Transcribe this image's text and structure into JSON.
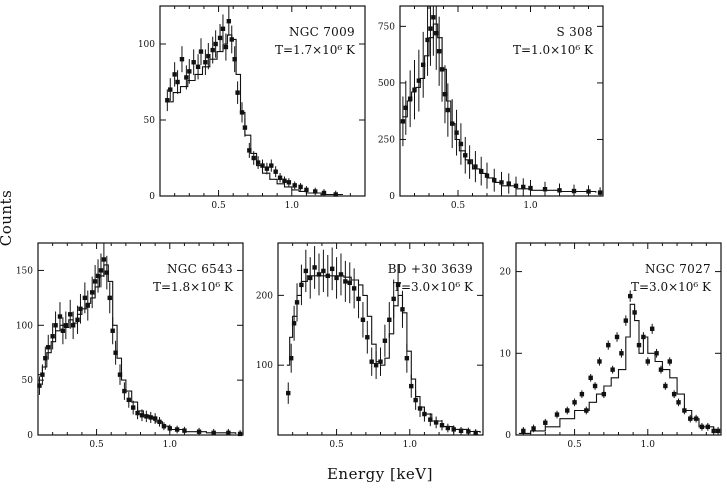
{
  "figure": {
    "xlabel": "Energy [keV]",
    "ylabel": "Counts"
  },
  "chart_data": [
    {
      "type": "histogram",
      "name": "NGC 7009",
      "temperature": "T=1.7×10⁶ K",
      "xlim": [
        0.1,
        1.5
      ],
      "ylim": [
        0,
        125
      ],
      "xticks": [
        {
          "v": 0.5,
          "label": "0.5"
        },
        {
          "v": 1.0,
          "label": "1.0"
        }
      ],
      "yticks": [
        {
          "v": 0,
          "label": "0"
        },
        {
          "v": 50,
          "label": "50"
        },
        {
          "v": 100,
          "label": "100"
        }
      ],
      "model": [
        [
          0.14,
          62
        ],
        [
          0.19,
          68
        ],
        [
          0.24,
          72
        ],
        [
          0.29,
          76
        ],
        [
          0.34,
          80
        ],
        [
          0.39,
          85
        ],
        [
          0.44,
          90
        ],
        [
          0.49,
          95
        ],
        [
          0.53,
          100
        ],
        [
          0.56,
          106
        ],
        [
          0.59,
          103
        ],
        [
          0.62,
          80
        ],
        [
          0.65,
          55
        ],
        [
          0.68,
          40
        ],
        [
          0.72,
          28
        ],
        [
          0.76,
          20
        ],
        [
          0.8,
          15
        ],
        [
          0.85,
          11
        ],
        [
          0.9,
          8
        ],
        [
          0.95,
          6
        ],
        [
          1.0,
          4
        ],
        [
          1.05,
          3
        ],
        [
          1.1,
          2
        ],
        [
          1.2,
          1
        ],
        [
          1.35,
          1
        ]
      ],
      "points": [
        [
          0.15,
          63
        ],
        [
          0.17,
          70
        ],
        [
          0.2,
          80
        ],
        [
          0.22,
          75
        ],
        [
          0.25,
          90
        ],
        [
          0.28,
          78
        ],
        [
          0.3,
          82
        ],
        [
          0.33,
          88
        ],
        [
          0.36,
          85
        ],
        [
          0.38,
          95
        ],
        [
          0.41,
          88
        ],
        [
          0.43,
          92
        ],
        [
          0.46,
          96
        ],
        [
          0.48,
          100
        ],
        [
          0.51,
          104
        ],
        [
          0.53,
          110
        ],
        [
          0.55,
          98
        ],
        [
          0.57,
          115
        ],
        [
          0.59,
          103
        ],
        [
          0.61,
          90
        ],
        [
          0.63,
          68
        ],
        [
          0.66,
          55
        ],
        [
          0.68,
          45
        ],
        [
          0.71,
          30
        ],
        [
          0.74,
          25
        ],
        [
          0.77,
          22
        ],
        [
          0.8,
          20
        ],
        [
          0.83,
          18
        ],
        [
          0.86,
          20
        ],
        [
          0.89,
          16
        ],
        [
          0.92,
          12
        ],
        [
          0.95,
          10
        ],
        [
          0.98,
          9
        ],
        [
          1.02,
          7
        ],
        [
          1.06,
          6
        ],
        [
          1.1,
          4
        ],
        [
          1.16,
          3
        ],
        [
          1.22,
          2
        ],
        [
          1.3,
          1
        ]
      ]
    },
    {
      "type": "histogram",
      "name": "S 308",
      "temperature": "T=1.0×10⁶ K",
      "xlim": [
        0.1,
        1.5
      ],
      "ylim": [
        0,
        840
      ],
      "xticks": [
        {
          "v": 0.5,
          "label": "0.5"
        },
        {
          "v": 1.0,
          "label": "1.0"
        }
      ],
      "yticks": [
        {
          "v": 0,
          "label": "0"
        },
        {
          "v": 250,
          "label": "250"
        },
        {
          "v": 500,
          "label": "500"
        },
        {
          "v": 750,
          "label": "750"
        }
      ],
      "model": [
        [
          0.12,
          350
        ],
        [
          0.15,
          420
        ],
        [
          0.18,
          460
        ],
        [
          0.21,
          480
        ],
        [
          0.24,
          520
        ],
        [
          0.27,
          620
        ],
        [
          0.3,
          700
        ],
        [
          0.33,
          760
        ],
        [
          0.36,
          700
        ],
        [
          0.39,
          560
        ],
        [
          0.42,
          420
        ],
        [
          0.45,
          320
        ],
        [
          0.48,
          250
        ],
        [
          0.51,
          200
        ],
        [
          0.55,
          160
        ],
        [
          0.6,
          120
        ],
        [
          0.65,
          100
        ],
        [
          0.7,
          80
        ],
        [
          0.75,
          60
        ],
        [
          0.8,
          45
        ],
        [
          0.9,
          32
        ],
        [
          1.0,
          25
        ],
        [
          1.2,
          20
        ],
        [
          1.45,
          15
        ]
      ],
      "points": [
        [
          0.12,
          330
        ],
        [
          0.14,
          390
        ],
        [
          0.17,
          430
        ],
        [
          0.2,
          470
        ],
        [
          0.23,
          510
        ],
        [
          0.26,
          580
        ],
        [
          0.29,
          690
        ],
        [
          0.31,
          740
        ],
        [
          0.33,
          790
        ],
        [
          0.35,
          720
        ],
        [
          0.37,
          640
        ],
        [
          0.39,
          560
        ],
        [
          0.41,
          450
        ],
        [
          0.43,
          380
        ],
        [
          0.46,
          320
        ],
        [
          0.49,
          280
        ],
        [
          0.52,
          230
        ],
        [
          0.55,
          180
        ],
        [
          0.58,
          150
        ],
        [
          0.62,
          130
        ],
        [
          0.66,
          110
        ],
        [
          0.7,
          90
        ],
        [
          0.75,
          70
        ],
        [
          0.8,
          60
        ],
        [
          0.85,
          55
        ],
        [
          0.9,
          45
        ],
        [
          0.95,
          40
        ],
        [
          1.0,
          35
        ],
        [
          1.1,
          30
        ],
        [
          1.2,
          25
        ],
        [
          1.3,
          22
        ],
        [
          1.4,
          20
        ],
        [
          1.48,
          15
        ]
      ]
    },
    {
      "type": "histogram",
      "name": "NGC 6543",
      "temperature": "T=1.8×10⁶ K",
      "xlim": [
        0.1,
        1.5
      ],
      "ylim": [
        0,
        175
      ],
      "xticks": [
        {
          "v": 0.5,
          "label": "0.5"
        },
        {
          "v": 1.0,
          "label": "1.0"
        }
      ],
      "yticks": [
        {
          "v": 0,
          "label": "0"
        },
        {
          "v": 50,
          "label": "50"
        },
        {
          "v": 100,
          "label": "100"
        },
        {
          "v": 150,
          "label": "150"
        }
      ],
      "model": [
        [
          0.1,
          55
        ],
        [
          0.13,
          62
        ],
        [
          0.16,
          75
        ],
        [
          0.19,
          85
        ],
        [
          0.22,
          95
        ],
        [
          0.25,
          100
        ],
        [
          0.28,
          98
        ],
        [
          0.31,
          105
        ],
        [
          0.34,
          102
        ],
        [
          0.37,
          110
        ],
        [
          0.4,
          115
        ],
        [
          0.43,
          120
        ],
        [
          0.46,
          125
        ],
        [
          0.49,
          135
        ],
        [
          0.52,
          145
        ],
        [
          0.55,
          155
        ],
        [
          0.58,
          140
        ],
        [
          0.61,
          100
        ],
        [
          0.64,
          70
        ],
        [
          0.67,
          50
        ],
        [
          0.7,
          40
        ],
        [
          0.74,
          30
        ],
        [
          0.78,
          22
        ],
        [
          0.82,
          18
        ],
        [
          0.86,
          15
        ],
        [
          0.9,
          12
        ],
        [
          0.95,
          8
        ],
        [
          1.0,
          5
        ],
        [
          1.1,
          3
        ],
        [
          1.25,
          2
        ],
        [
          1.45,
          1
        ]
      ],
      "points": [
        [
          0.11,
          45
        ],
        [
          0.13,
          55
        ],
        [
          0.15,
          70
        ],
        [
          0.17,
          80
        ],
        [
          0.2,
          90
        ],
        [
          0.22,
          100
        ],
        [
          0.25,
          108
        ],
        [
          0.27,
          95
        ],
        [
          0.29,
          100
        ],
        [
          0.32,
          110
        ],
        [
          0.34,
          100
        ],
        [
          0.37,
          105
        ],
        [
          0.39,
          115
        ],
        [
          0.42,
          125
        ],
        [
          0.44,
          118
        ],
        [
          0.47,
          130
        ],
        [
          0.49,
          140
        ],
        [
          0.51,
          145
        ],
        [
          0.53,
          150
        ],
        [
          0.55,
          160
        ],
        [
          0.57,
          148
        ],
        [
          0.59,
          125
        ],
        [
          0.61,
          95
        ],
        [
          0.63,
          75
        ],
        [
          0.66,
          55
        ],
        [
          0.69,
          40
        ],
        [
          0.72,
          32
        ],
        [
          0.75,
          25
        ],
        [
          0.78,
          20
        ],
        [
          0.81,
          18
        ],
        [
          0.84,
          17
        ],
        [
          0.87,
          16
        ],
        [
          0.9,
          15
        ],
        [
          0.93,
          12
        ],
        [
          0.96,
          8
        ],
        [
          1.0,
          6
        ],
        [
          1.05,
          5
        ],
        [
          1.1,
          4
        ],
        [
          1.2,
          3
        ],
        [
          1.3,
          2
        ],
        [
          1.4,
          2
        ],
        [
          1.48,
          1
        ]
      ]
    },
    {
      "type": "histogram",
      "name": "BD +30 3639",
      "temperature": "T=3.0×10⁶ K",
      "xlim": [
        0.1,
        1.5
      ],
      "ylim": [
        0,
        275
      ],
      "xticks": [
        {
          "v": 0.5,
          "label": "0.5"
        },
        {
          "v": 1.0,
          "label": "1.0"
        }
      ],
      "yticks": [
        {
          "v": 100,
          "label": "100"
        },
        {
          "v": 200,
          "label": "200"
        }
      ],
      "model": [
        [
          0.16,
          100
        ],
        [
          0.18,
          140
        ],
        [
          0.2,
          170
        ],
        [
          0.23,
          200
        ],
        [
          0.26,
          220
        ],
        [
          0.3,
          228
        ],
        [
          0.35,
          228
        ],
        [
          0.4,
          228
        ],
        [
          0.45,
          228
        ],
        [
          0.5,
          228
        ],
        [
          0.55,
          226
        ],
        [
          0.6,
          222
        ],
        [
          0.65,
          215
        ],
        [
          0.68,
          200
        ],
        [
          0.71,
          170
        ],
        [
          0.74,
          130
        ],
        [
          0.77,
          105
        ],
        [
          0.8,
          100
        ],
        [
          0.83,
          110
        ],
        [
          0.86,
          145
        ],
        [
          0.89,
          185
        ],
        [
          0.92,
          200
        ],
        [
          0.95,
          175
        ],
        [
          0.98,
          120
        ],
        [
          1.01,
          80
        ],
        [
          1.04,
          55
        ],
        [
          1.07,
          40
        ],
        [
          1.1,
          30
        ],
        [
          1.15,
          20
        ],
        [
          1.22,
          12
        ],
        [
          1.3,
          8
        ],
        [
          1.4,
          5
        ],
        [
          1.48,
          3
        ]
      ],
      "points": [
        [
          0.17,
          60
        ],
        [
          0.19,
          110
        ],
        [
          0.21,
          160
        ],
        [
          0.23,
          190
        ],
        [
          0.26,
          215
        ],
        [
          0.29,
          235
        ],
        [
          0.32,
          225
        ],
        [
          0.35,
          240
        ],
        [
          0.38,
          230
        ],
        [
          0.41,
          235
        ],
        [
          0.44,
          228
        ],
        [
          0.47,
          238
        ],
        [
          0.5,
          225
        ],
        [
          0.53,
          230
        ],
        [
          0.56,
          220
        ],
        [
          0.59,
          218
        ],
        [
          0.62,
          210
        ],
        [
          0.65,
          195
        ],
        [
          0.68,
          165
        ],
        [
          0.71,
          140
        ],
        [
          0.74,
          105
        ],
        [
          0.77,
          100
        ],
        [
          0.8,
          105
        ],
        [
          0.83,
          135
        ],
        [
          0.86,
          165
        ],
        [
          0.89,
          195
        ],
        [
          0.92,
          215
        ],
        [
          0.95,
          180
        ],
        [
          0.98,
          110
        ],
        [
          1.01,
          70
        ],
        [
          1.04,
          50
        ],
        [
          1.07,
          38
        ],
        [
          1.1,
          30
        ],
        [
          1.14,
          22
        ],
        [
          1.18,
          18
        ],
        [
          1.22,
          14
        ],
        [
          1.26,
          10
        ],
        [
          1.3,
          8
        ],
        [
          1.35,
          6
        ],
        [
          1.4,
          5
        ],
        [
          1.45,
          3
        ]
      ]
    },
    {
      "type": "histogram",
      "name": "NGC 7027",
      "temperature": "T=3.0×10⁶ K",
      "xlim": [
        0.1,
        1.5
      ],
      "ylim": [
        0,
        23.5
      ],
      "xticks": [
        {
          "v": 0.5,
          "label": "0.5"
        },
        {
          "v": 1.0,
          "label": "1.0"
        }
      ],
      "yticks": [
        {
          "v": 0,
          "label": "0"
        },
        {
          "v": 10,
          "label": "10"
        },
        {
          "v": 20,
          "label": "20"
        }
      ],
      "model": [
        [
          0.12,
          0.2
        ],
        [
          0.2,
          0.5
        ],
        [
          0.3,
          1
        ],
        [
          0.4,
          2
        ],
        [
          0.5,
          3
        ],
        [
          0.6,
          4
        ],
        [
          0.65,
          5
        ],
        [
          0.7,
          6
        ],
        [
          0.75,
          7
        ],
        [
          0.8,
          8
        ],
        [
          0.85,
          12
        ],
        [
          0.88,
          16
        ],
        [
          0.91,
          14
        ],
        [
          0.94,
          10
        ],
        [
          0.97,
          12
        ],
        [
          1.0,
          10
        ],
        [
          1.05,
          9
        ],
        [
          1.1,
          8
        ],
        [
          1.15,
          7
        ],
        [
          1.2,
          5
        ],
        [
          1.25,
          3
        ],
        [
          1.3,
          2
        ],
        [
          1.35,
          1
        ],
        [
          1.45,
          0.5
        ]
      ],
      "points": [
        [
          0.15,
          0.5
        ],
        [
          0.22,
          0.8
        ],
        [
          0.3,
          1.5
        ],
        [
          0.38,
          2.5
        ],
        [
          0.45,
          3
        ],
        [
          0.5,
          4
        ],
        [
          0.55,
          5
        ],
        [
          0.58,
          3
        ],
        [
          0.61,
          7
        ],
        [
          0.64,
          6
        ],
        [
          0.67,
          9
        ],
        [
          0.7,
          5
        ],
        [
          0.73,
          11
        ],
        [
          0.76,
          8
        ],
        [
          0.79,
          12
        ],
        [
          0.82,
          10
        ],
        [
          0.85,
          14
        ],
        [
          0.88,
          17
        ],
        [
          0.91,
          15
        ],
        [
          0.94,
          11
        ],
        [
          0.97,
          12
        ],
        [
          1.0,
          9
        ],
        [
          1.03,
          13
        ],
        [
          1.06,
          10
        ],
        [
          1.09,
          8
        ],
        [
          1.12,
          6
        ],
        [
          1.15,
          9
        ],
        [
          1.18,
          5
        ],
        [
          1.21,
          4
        ],
        [
          1.25,
          3
        ],
        [
          1.29,
          2
        ],
        [
          1.33,
          2
        ],
        [
          1.37,
          1
        ],
        [
          1.41,
          1
        ],
        [
          1.45,
          0.5
        ],
        [
          1.48,
          0.5
        ]
      ]
    }
  ]
}
